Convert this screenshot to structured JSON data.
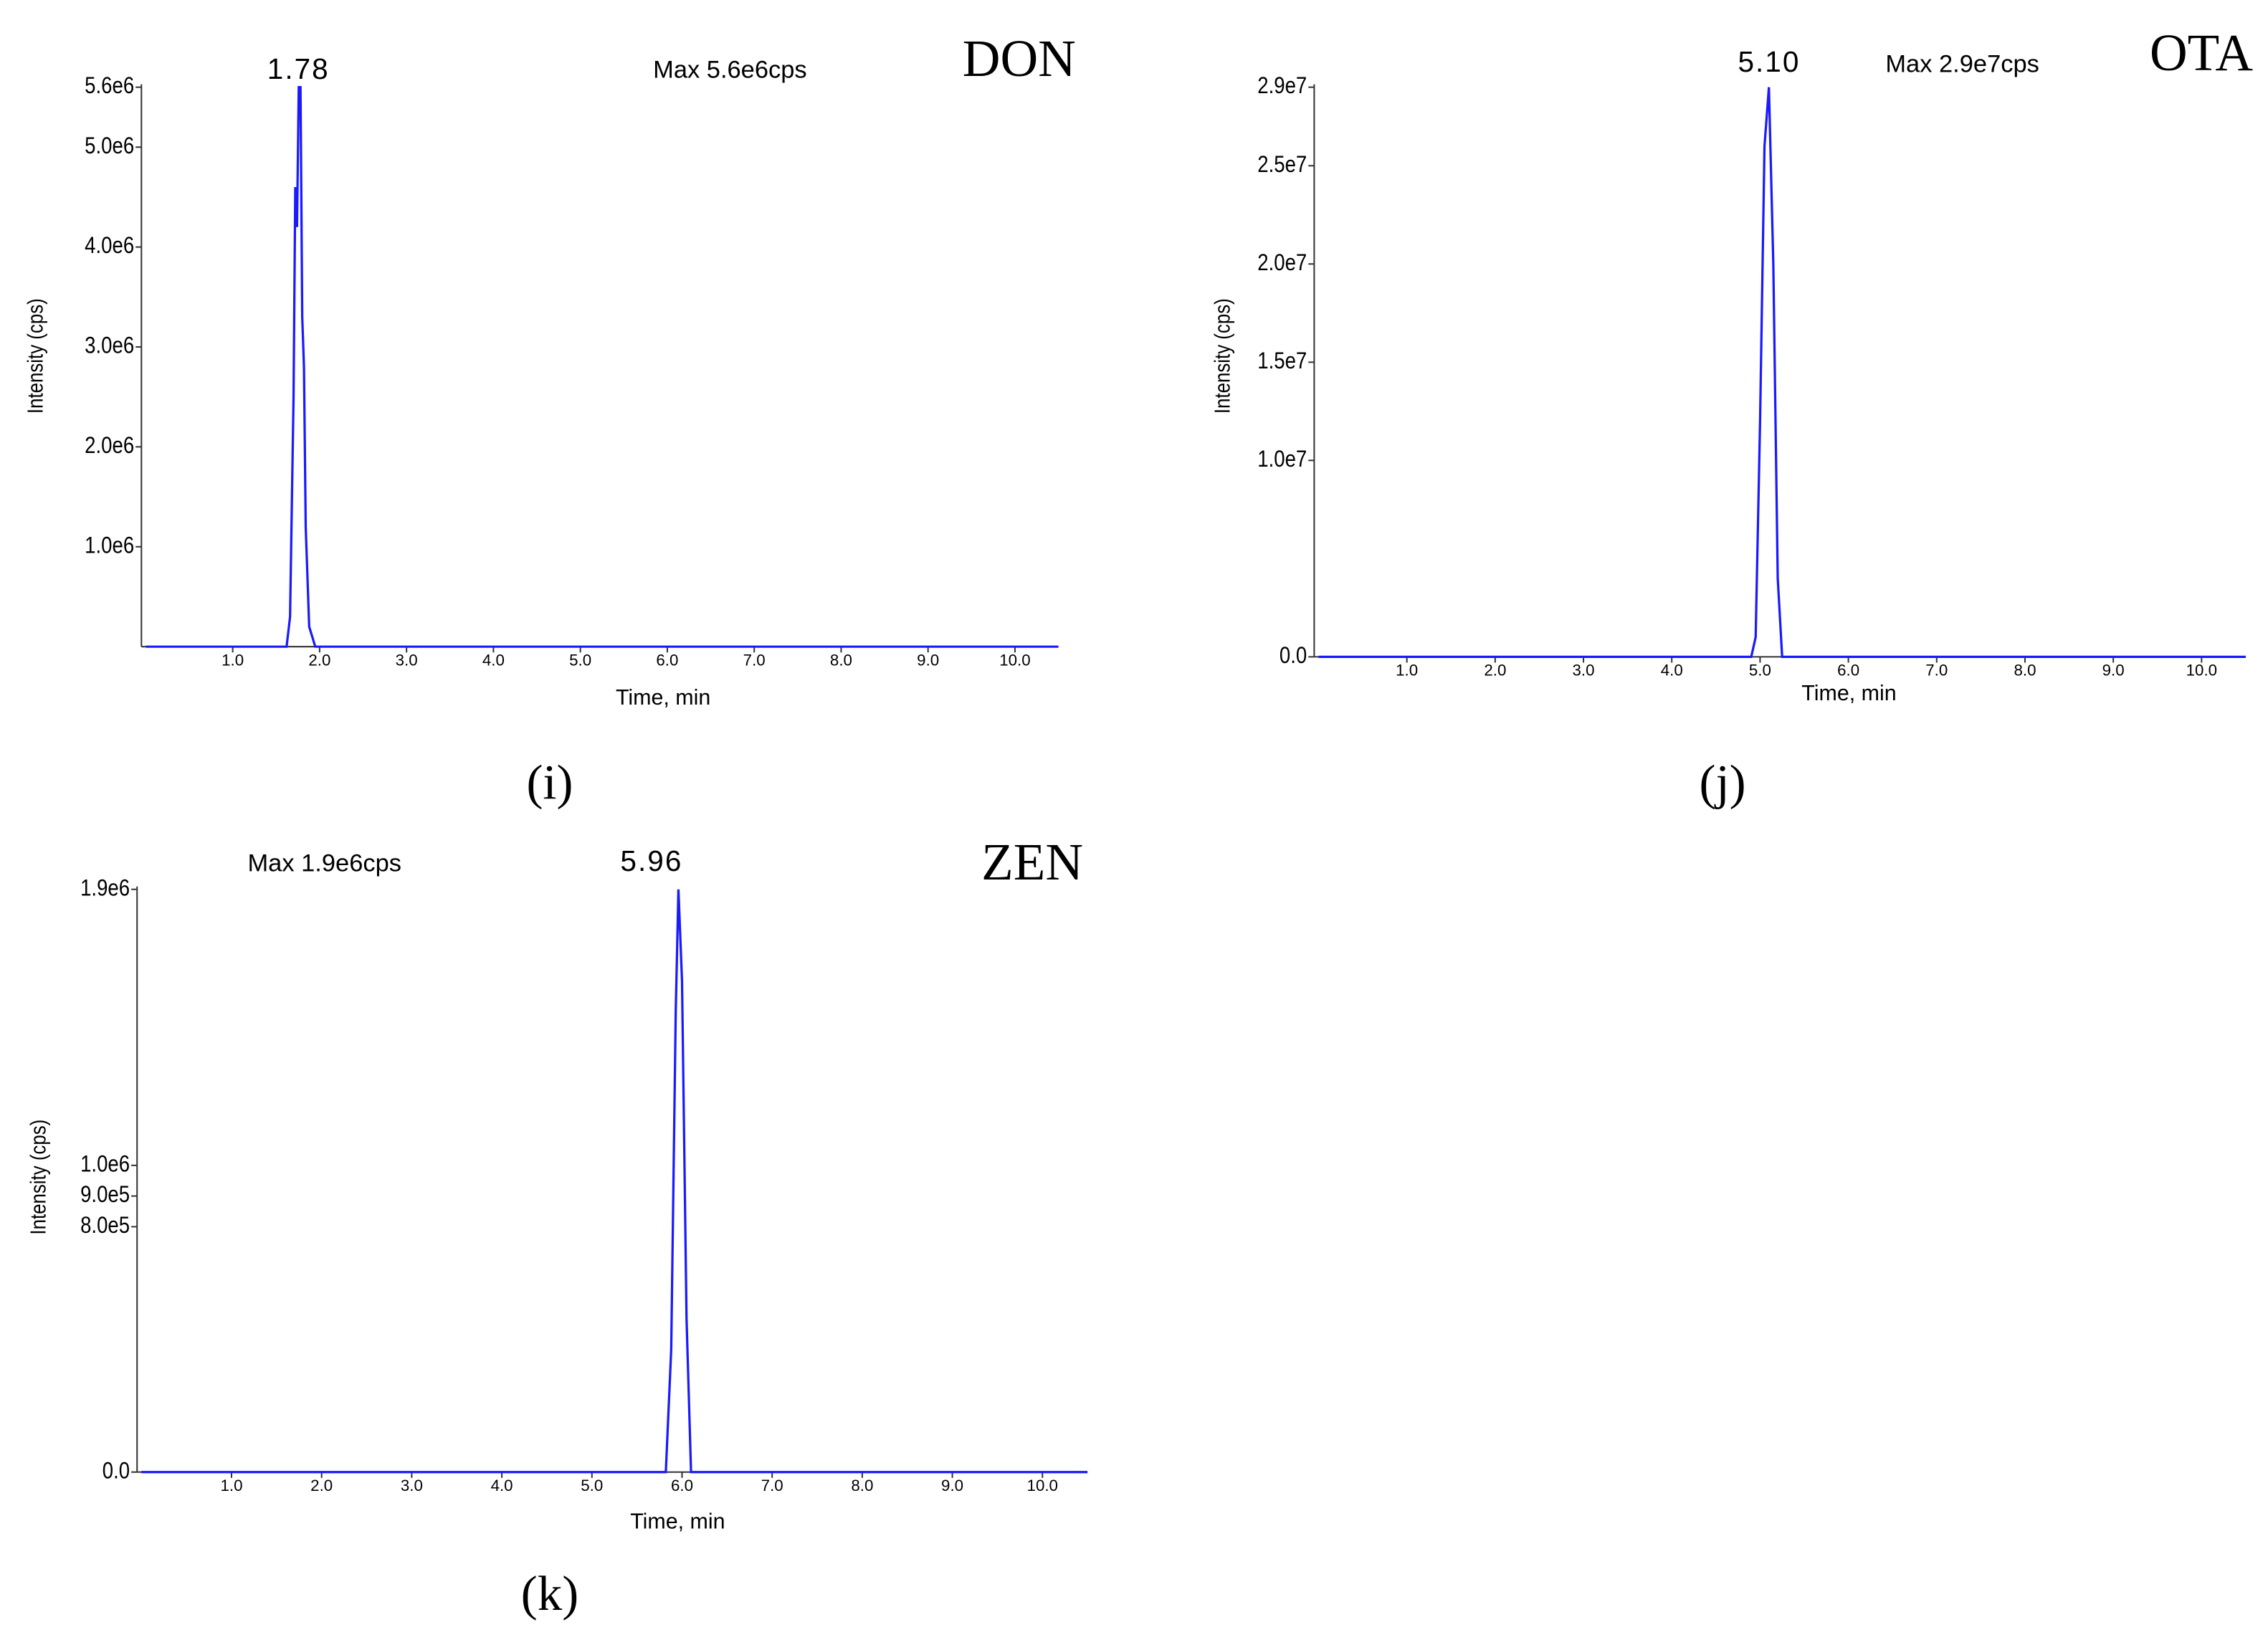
{
  "chart_data": [
    {
      "type": "line",
      "title": "DON",
      "annotation": "Max 5.6e6cps",
      "peak_label": "1.78",
      "panel_label": "(i)",
      "x_label": "Time, min",
      "y_label": "Intensity (cps)",
      "color": "#1a1aff",
      "x": [
        0,
        1.62,
        1.66,
        1.7,
        1.72,
        1.74,
        1.76,
        1.78,
        1.8,
        1.82,
        1.84,
        1.88,
        1.95,
        10.5
      ],
      "values": [
        0,
        0,
        300000,
        2500000,
        4600000,
        4200000,
        5600000,
        5600000,
        3300000,
        2800000,
        1200000,
        200000,
        0,
        0
      ],
      "xlim": [
        0,
        10.5
      ],
      "ylim": [
        0,
        5600000
      ],
      "xticks": [
        {
          "value": 1,
          "label": "1.0"
        },
        {
          "value": 2,
          "label": "2.0"
        },
        {
          "value": 3,
          "label": "3.0"
        },
        {
          "value": 4,
          "label": "4.0"
        },
        {
          "value": 5,
          "label": "5.0"
        },
        {
          "value": 6,
          "label": "6.0"
        },
        {
          "value": 7,
          "label": "7.0"
        },
        {
          "value": 8,
          "label": "8.0"
        },
        {
          "value": 9,
          "label": "9.0"
        },
        {
          "value": 10,
          "label": "10.0"
        }
      ],
      "yticks": [
        {
          "value": 1000000,
          "label": "1.0e6"
        },
        {
          "value": 2000000,
          "label": "2.0e6"
        },
        {
          "value": 3000000,
          "label": "3.0e6"
        },
        {
          "value": 4000000,
          "label": "4.0e6"
        },
        {
          "value": 5000000,
          "label": "5.0e6"
        },
        {
          "value": 5600000,
          "label": "5.6e6"
        }
      ]
    },
    {
      "type": "line",
      "title": "OTA",
      "annotation": "Max 2.9e7cps",
      "peak_label": "5.10",
      "panel_label": "(j)",
      "x_label": "Time, min",
      "y_label": "Intensity (cps)",
      "color": "#1a1aff",
      "x": [
        0,
        4.9,
        4.95,
        5.0,
        5.05,
        5.1,
        5.15,
        5.2,
        5.25,
        10.5
      ],
      "values": [
        0,
        0,
        1000000,
        12000000,
        26000000,
        29000000,
        20000000,
        4000000,
        0,
        0
      ],
      "xlim": [
        0,
        10.5
      ],
      "ylim": [
        0,
        29000000
      ],
      "xticks": [
        {
          "value": 1,
          "label": "1.0"
        },
        {
          "value": 2,
          "label": "2.0"
        },
        {
          "value": 3,
          "label": "3.0"
        },
        {
          "value": 4,
          "label": "4.0"
        },
        {
          "value": 5,
          "label": "5.0"
        },
        {
          "value": 6,
          "label": "6.0"
        },
        {
          "value": 7,
          "label": "7.0"
        },
        {
          "value": 8,
          "label": "8.0"
        },
        {
          "value": 9,
          "label": "9.0"
        },
        {
          "value": 10,
          "label": "10.0"
        }
      ],
      "yticks": [
        {
          "value": 0,
          "label": "0.0"
        },
        {
          "value": 10000000,
          "label": "1.0e7"
        },
        {
          "value": 15000000,
          "label": "1.5e7"
        },
        {
          "value": 20000000,
          "label": "2.0e7"
        },
        {
          "value": 25000000,
          "label": "2.5e7"
        },
        {
          "value": 29000000,
          "label": "2.9e7"
        }
      ]
    },
    {
      "type": "line",
      "title": "ZEN",
      "annotation": "Max 1.9e6cps",
      "peak_label": "5.96",
      "panel_label": "(k)",
      "x_label": "Time, min",
      "y_label": "Intensity (cps)",
      "color": "#1a1aff",
      "x": [
        0,
        5.82,
        5.88,
        5.93,
        5.96,
        6.0,
        6.05,
        6.1,
        10.5
      ],
      "values": [
        0,
        0,
        400000,
        1500000,
        1900000,
        1600000,
        500000,
        0,
        0
      ],
      "xlim": [
        0,
        10.5
      ],
      "ylim": [
        0,
        1900000
      ],
      "xticks": [
        {
          "value": 1,
          "label": "1.0"
        },
        {
          "value": 2,
          "label": "2.0"
        },
        {
          "value": 3,
          "label": "3.0"
        },
        {
          "value": 4,
          "label": "4.0"
        },
        {
          "value": 5,
          "label": "5.0"
        },
        {
          "value": 6,
          "label": "6.0"
        },
        {
          "value": 7,
          "label": "7.0"
        },
        {
          "value": 8,
          "label": "8.0"
        },
        {
          "value": 9,
          "label": "9.0"
        },
        {
          "value": 10,
          "label": "10.0"
        }
      ],
      "yticks": [
        {
          "value": 0,
          "label": "0.0"
        },
        {
          "value": 800000,
          "label": "8.0e5"
        },
        {
          "value": 900000,
          "label": "9.0e5"
        },
        {
          "value": 1000000,
          "label": "1.0e6"
        },
        {
          "value": 1900000,
          "label": "1.9e6"
        }
      ]
    }
  ]
}
